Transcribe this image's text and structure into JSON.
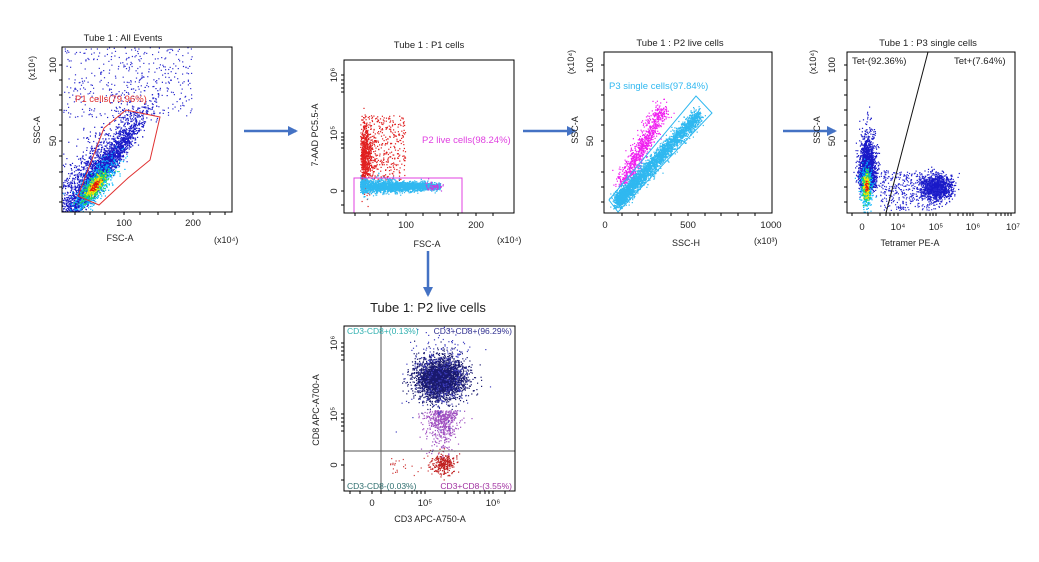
{
  "chart_data": [
    {
      "type": "scatter",
      "title": "Tube 1 : All Events",
      "xlabel": "FSC-A",
      "xunit": "(x10⁴)",
      "ylabel": "SSC-A",
      "yunit": "(x10⁴)",
      "xticks": [
        "100",
        "200"
      ],
      "yticks": [
        "100",
        "50"
      ],
      "xlim": [
        10,
        250
      ],
      "ylim": [
        3,
        110
      ],
      "colormap": "density (blue-cyan-green-yellow-red)",
      "gates": [
        {
          "name": "P1 cells(79.96%)",
          "shape": "polygon",
          "color": "#e03030"
        }
      ]
    },
    {
      "type": "scatter",
      "title": "Tube 1 : P1  cells",
      "xlabel": "FSC-A",
      "xunit": "(x10⁴)",
      "ylabel": "7-AAD PC5.5-A",
      "xticks": [
        "100",
        "200"
      ],
      "yticks": [
        "10⁶",
        "10⁵",
        "0"
      ],
      "yscale": "biexponential",
      "gates": [
        {
          "name": "P2 live cells(98.24%)",
          "shape": "rectangle",
          "color": "#e040e0"
        }
      ],
      "population_colors": {
        "gated": "#30b8f0",
        "excluded": "#e02020"
      }
    },
    {
      "type": "scatter",
      "title": "Tube 1 : P2 live cells",
      "xlabel": "SSC-H",
      "xunit": "(x10³)",
      "ylabel": "SSC-A",
      "yunit": "(x10⁴)",
      "xticks": [
        "0",
        "500",
        "1000"
      ],
      "yticks": [
        "100",
        "50"
      ],
      "xlim": [
        0,
        1000
      ],
      "ylim": [
        3,
        110
      ],
      "gates": [
        {
          "name": "P3 single cells(97.84%)",
          "shape": "rotated rectangle",
          "color": "#30b8f0"
        }
      ],
      "population_colors": {
        "gated": "#30b8f0",
        "excluded": "#f020f0"
      }
    },
    {
      "type": "scatter",
      "title": "Tube 1 : P3 single cells",
      "xlabel": "Tetramer PE-A",
      "ylabel": "SSC-A",
      "yunit": "(x10⁴)",
      "xticks": [
        "0",
        "10⁴",
        "10⁵",
        "10⁶",
        "10⁷"
      ],
      "yticks": [
        "100",
        "50"
      ],
      "xscale": "biexponential",
      "colormap": "density (blue-cyan-green-yellow-red)",
      "gates": [
        {
          "name": "Tet-(92.36%)",
          "shape": "line split"
        },
        {
          "name": "Tet+(7.64%)",
          "shape": "line split"
        }
      ]
    },
    {
      "type": "scatter",
      "title": "Tube 1: P2 live cells",
      "xlabel": "CD3 APC-A750-A",
      "ylabel": "CD8 APC-A700-A",
      "xticks": [
        "0",
        "10⁵",
        "10⁶"
      ],
      "yticks": [
        "10⁶",
        "10⁵",
        "0"
      ],
      "xscale": "biexponential",
      "yscale": "biexponential",
      "quadrants": [
        {
          "name": "CD3-CD8+(0.13%)",
          "position": "top-left",
          "color": "#30b0b0"
        },
        {
          "name": "CD3+CD8+(96.29%)",
          "position": "top-right",
          "color": "#303090"
        },
        {
          "name": "CD3-CD8-(0.03%)",
          "position": "bottom-left",
          "color": "#307070"
        },
        {
          "name": "CD3+CD8-(3.55%)",
          "position": "bottom-right",
          "color": "#a030a0"
        }
      ]
    }
  ],
  "colors": {
    "arrow": "#4472c4",
    "axis": "#000000"
  }
}
